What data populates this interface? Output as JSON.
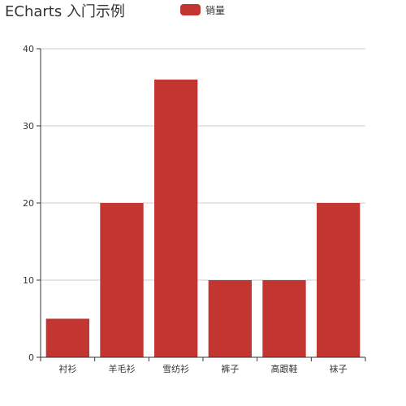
{
  "title": "ECharts 入门示例",
  "legend": {
    "label": "销量",
    "color": "#c23531"
  },
  "chart_data": {
    "type": "bar",
    "title": "ECharts 入门示例",
    "categories": [
      "衬衫",
      "羊毛衫",
      "雪纺衫",
      "裤子",
      "高跟鞋",
      "袜子"
    ],
    "series": [
      {
        "name": "销量",
        "values": [
          5,
          20,
          36,
          10,
          10,
          20
        ],
        "color": "#c23531"
      }
    ],
    "ylim": [
      0,
      40
    ],
    "yticks": [
      0,
      10,
      20,
      30,
      40
    ],
    "grid": true,
    "legend_position": "top-center"
  }
}
